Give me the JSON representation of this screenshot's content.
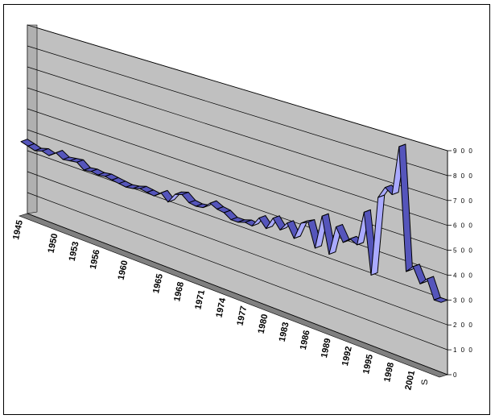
{
  "chart_data": {
    "type": "line",
    "style": "3d-ribbon",
    "title": "",
    "xlabel": "",
    "ylabel": "",
    "ylim": [
      0,
      900
    ],
    "yticks": [
      0,
      100,
      200,
      300,
      400,
      500,
      600,
      700,
      800,
      900
    ],
    "ytick_labels": [
      "0",
      "1 0 0",
      "2 0 0",
      "3 0 0",
      "4 0 0",
      "5 0 0",
      "6 0 0",
      "7 0 0",
      "8 0 0",
      "9 0 0"
    ],
    "xtick_labels": [
      "1945",
      "1950",
      "1953",
      "1956",
      "1960",
      "1965",
      "1968",
      "1971",
      "1974",
      "1977",
      "1980",
      "1983",
      "1986",
      "1989",
      "1992",
      "1995",
      "1998",
      "2001"
    ],
    "series_axis_label": "S",
    "grid": true,
    "legend": "none",
    "colors": {
      "ribbon_top": "#aaaaff",
      "ribbon_side": "#5555bb",
      "wall": "#c0c0c0",
      "floor": "#808080",
      "edge": "#000000"
    },
    "x": [
      1945,
      1946,
      1947,
      1948,
      1949,
      1950,
      1951,
      1952,
      1953,
      1954,
      1955,
      1956,
      1957,
      1958,
      1959,
      1960,
      1961,
      1962,
      1963,
      1964,
      1965,
      1966,
      1967,
      1968,
      1969,
      1970,
      1971,
      1972,
      1973,
      1974,
      1975,
      1976,
      1977,
      1978,
      1979,
      1980,
      1981,
      1982,
      1983,
      1984,
      1985,
      1986,
      1987,
      1988,
      1989,
      1990,
      1991,
      1992,
      1993,
      1994,
      1995,
      1996,
      1997,
      1998,
      1999,
      2000,
      2001,
      2002,
      2003,
      2004,
      2005
    ],
    "series": [
      {
        "values": [
          355,
          345,
          335,
          345,
          335,
          360,
          340,
          345,
          350,
          325,
          330,
          325,
          330,
          325,
          320,
          315,
          320,
          330,
          325,
          320,
          345,
          315,
          360,
          370,
          345,
          340,
          345,
          375,
          360,
          355,
          335,
          335,
          345,
          340,
          385,
          350,
          405,
          365,
          405,
          350,
          425,
          440,
          340,
          485,
          335,
          460,
          405,
          430,
          415,
          560,
          310,
          640,
          690,
          670,
          875,
          375,
          405,
          345,
          375,
          300,
          300
        ]
      }
    ]
  }
}
